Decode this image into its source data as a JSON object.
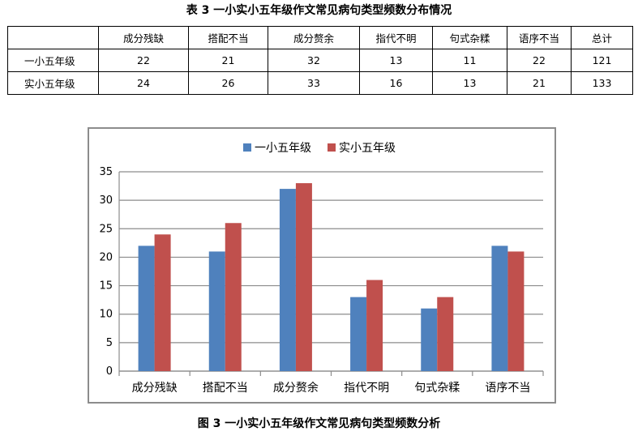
{
  "table": {
    "title": "表 3  一小实小五年级作文常见病句类型频数分布情况",
    "headers": [
      "",
      "成分残缺",
      "搭配不当",
      "成分赘余",
      "指代不明",
      "句式杂糅",
      "语序不当",
      "总计"
    ],
    "rows": [
      {
        "label": "一小五年级",
        "cells": [
          "22",
          "21",
          "32",
          "13",
          "11",
          "22",
          "121"
        ]
      },
      {
        "label": "实小五年级",
        "cells": [
          "24",
          "26",
          "33",
          "16",
          "13",
          "21",
          "133"
        ]
      }
    ]
  },
  "chart_data": {
    "type": "bar",
    "categories": [
      "成分残缺",
      "搭配不当",
      "成分赘余",
      "指代不明",
      "句式杂糅",
      "语序不当"
    ],
    "series": [
      {
        "name": "一小五年级",
        "color": "#4f81bd",
        "values": [
          22,
          21,
          32,
          13,
          11,
          22
        ]
      },
      {
        "name": "实小五年级",
        "color": "#c0504d",
        "values": [
          24,
          26,
          33,
          16,
          13,
          21
        ]
      }
    ],
    "ylim": [
      0,
      35
    ],
    "yticks": [
      0,
      5,
      10,
      15,
      20,
      25,
      30,
      35
    ],
    "grid": true,
    "legend_position": "top",
    "xlabel": "",
    "ylabel": ""
  },
  "figure": {
    "caption": "图 3  一小实小五年级作文常见病句类型频数分析"
  }
}
